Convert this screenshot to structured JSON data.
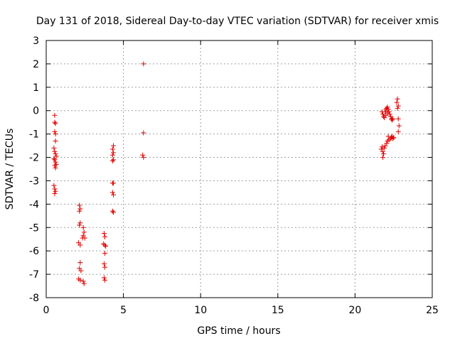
{
  "chart_data": {
    "type": "scatter",
    "title": "Day 131 of 2018, Sidereal Day-to-day VTEC variation (SDTVAR) for receiver xmis",
    "xlabel": "GPS time / hours",
    "ylabel": "SDTVAR / TECUs",
    "xlim": [
      0,
      25
    ],
    "ylim": [
      -8,
      3
    ],
    "xticks": [
      0,
      5,
      10,
      15,
      20,
      25
    ],
    "yticks": [
      -8,
      -7,
      -6,
      -5,
      -4,
      -3,
      -2,
      -1,
      0,
      1,
      2,
      3
    ],
    "grid": true,
    "marker": "plus",
    "color": "#e00000",
    "series": [
      {
        "name": "SDTVAR",
        "points": [
          [
            0.55,
            -0.2
          ],
          [
            0.55,
            -0.5
          ],
          [
            0.6,
            -0.55
          ],
          [
            0.55,
            -0.9
          ],
          [
            0.6,
            -1.0
          ],
          [
            0.6,
            -1.3
          ],
          [
            0.5,
            -1.6
          ],
          [
            0.55,
            -1.75
          ],
          [
            0.6,
            -1.85
          ],
          [
            0.65,
            -1.95
          ],
          [
            0.5,
            -2.05
          ],
          [
            0.55,
            -2.1
          ],
          [
            0.6,
            -2.2
          ],
          [
            0.65,
            -2.3
          ],
          [
            0.55,
            -2.35
          ],
          [
            0.6,
            -2.45
          ],
          [
            0.5,
            -3.2
          ],
          [
            0.55,
            -3.35
          ],
          [
            0.6,
            -3.45
          ],
          [
            0.55,
            -3.55
          ],
          [
            2.15,
            -4.05
          ],
          [
            2.2,
            -4.2
          ],
          [
            2.15,
            -4.3
          ],
          [
            2.2,
            -4.8
          ],
          [
            2.15,
            -4.9
          ],
          [
            2.4,
            -5.0
          ],
          [
            2.45,
            -5.2
          ],
          [
            2.4,
            -5.35
          ],
          [
            2.5,
            -5.45
          ],
          [
            2.35,
            -5.45
          ],
          [
            2.1,
            -5.65
          ],
          [
            2.2,
            -5.75
          ],
          [
            2.2,
            -6.5
          ],
          [
            2.15,
            -6.75
          ],
          [
            2.25,
            -6.85
          ],
          [
            2.1,
            -7.2
          ],
          [
            2.2,
            -7.25
          ],
          [
            2.4,
            -7.3
          ],
          [
            2.45,
            -7.4
          ],
          [
            3.75,
            -5.25
          ],
          [
            3.8,
            -5.4
          ],
          [
            3.7,
            -5.7
          ],
          [
            3.8,
            -5.75
          ],
          [
            3.85,
            -5.8
          ],
          [
            3.8,
            -6.1
          ],
          [
            3.75,
            -6.55
          ],
          [
            3.8,
            -6.7
          ],
          [
            3.75,
            -7.15
          ],
          [
            3.8,
            -7.25
          ],
          [
            4.35,
            -1.5
          ],
          [
            4.3,
            -1.65
          ],
          [
            4.35,
            -1.8
          ],
          [
            4.3,
            -1.9
          ],
          [
            4.35,
            -2.1
          ],
          [
            4.3,
            -2.15
          ],
          [
            4.3,
            -3.1
          ],
          [
            4.35,
            -3.1
          ],
          [
            4.3,
            -3.5
          ],
          [
            4.35,
            -3.6
          ],
          [
            4.3,
            -4.3
          ],
          [
            4.35,
            -4.35
          ],
          [
            6.3,
            2.0
          ],
          [
            6.3,
            -0.95
          ],
          [
            6.25,
            -1.9
          ],
          [
            6.3,
            -2.0
          ],
          [
            21.75,
            -0.05
          ],
          [
            21.8,
            -0.15
          ],
          [
            21.85,
            -0.25
          ],
          [
            21.9,
            -0.3
          ],
          [
            21.95,
            -0.05
          ],
          [
            22.0,
            0.05
          ],
          [
            22.05,
            0.1
          ],
          [
            22.1,
            0.15
          ],
          [
            22.15,
            0.05
          ],
          [
            22.2,
            -0.05
          ],
          [
            22.25,
            -0.15
          ],
          [
            22.3,
            -0.25
          ],
          [
            22.35,
            -0.35
          ],
          [
            22.4,
            -0.4
          ],
          [
            22.45,
            -0.35
          ],
          [
            22.0,
            -0.2
          ],
          [
            22.1,
            -0.1
          ],
          [
            21.7,
            -1.65
          ],
          [
            21.75,
            -1.55
          ],
          [
            21.8,
            -1.75
          ],
          [
            21.85,
            -1.85
          ],
          [
            21.8,
            -2.0
          ],
          [
            21.9,
            -1.6
          ],
          [
            21.95,
            -1.5
          ],
          [
            22.05,
            -1.4
          ],
          [
            22.1,
            -1.3
          ],
          [
            22.15,
            -1.1
          ],
          [
            22.2,
            -1.25
          ],
          [
            22.3,
            -1.2
          ],
          [
            22.35,
            -1.15
          ],
          [
            22.4,
            -1.1
          ],
          [
            22.45,
            -1.2
          ],
          [
            22.5,
            -1.15
          ],
          [
            22.75,
            0.5
          ],
          [
            22.7,
            0.35
          ],
          [
            22.8,
            0.2
          ],
          [
            22.75,
            0.1
          ],
          [
            22.8,
            -0.35
          ],
          [
            22.85,
            -0.65
          ],
          [
            22.8,
            -0.9
          ]
        ]
      }
    ]
  }
}
